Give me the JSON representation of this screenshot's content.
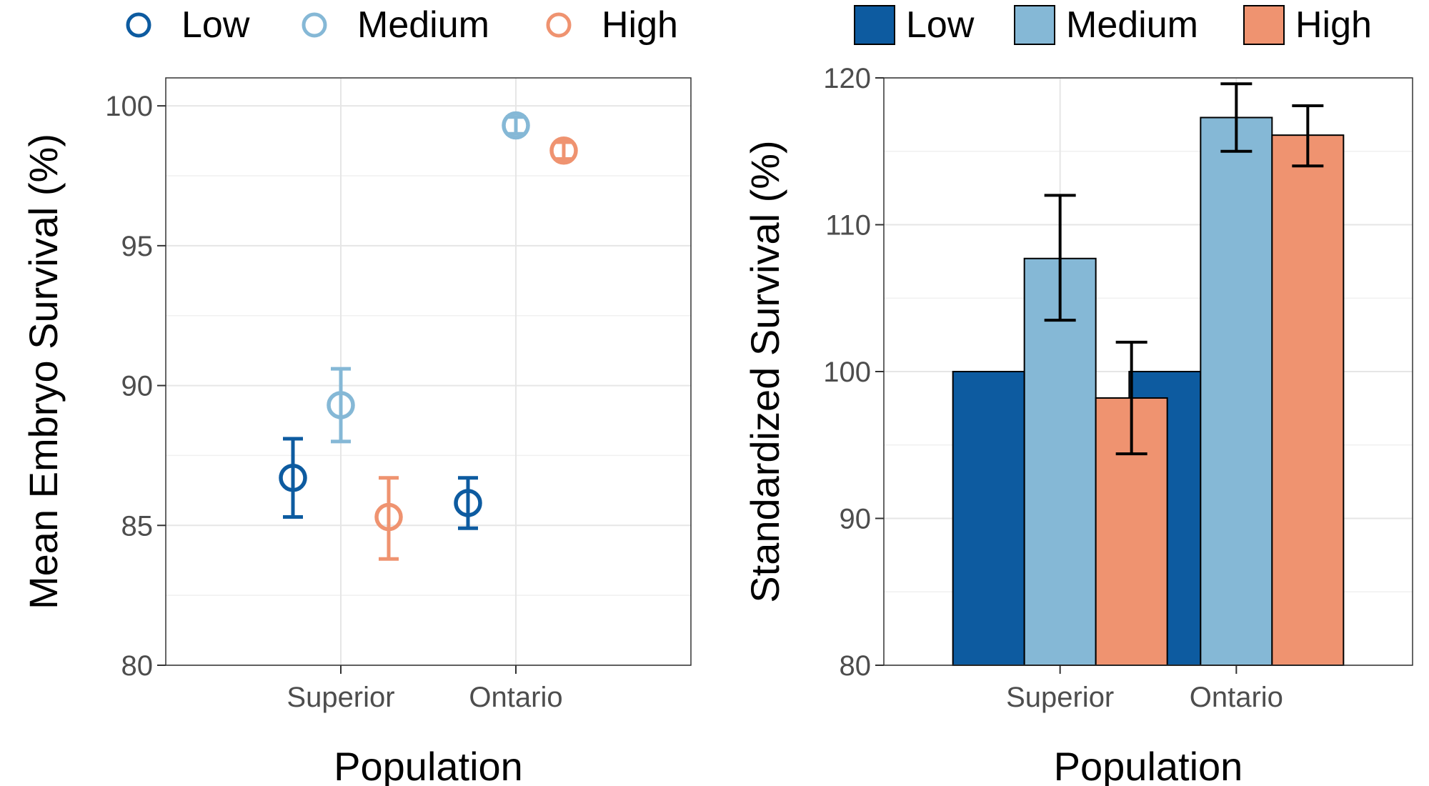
{
  "chart_data": [
    {
      "type": "scatter",
      "title": "",
      "xlabel": "Population",
      "ylabel": "Mean Embryo Survival (%)",
      "categories": [
        "Superior",
        "Ontario"
      ],
      "ylim": [
        80,
        101
      ],
      "yticks": [
        80,
        85,
        90,
        95,
        100
      ],
      "grid": true,
      "legend_position": "top",
      "series": [
        {
          "name": "Low",
          "color": "#0d5ba0",
          "values": [
            86.7,
            85.8
          ],
          "err_low": [
            85.3,
            84.9
          ],
          "err_high": [
            88.1,
            86.7
          ]
        },
        {
          "name": "Medium",
          "color": "#85b8d6",
          "values": [
            89.3,
            99.3
          ],
          "err_low": [
            88.0,
            99.0
          ],
          "err_high": [
            90.6,
            99.6
          ]
        },
        {
          "name": "High",
          "color": "#ef9370",
          "values": [
            85.3,
            98.4
          ],
          "err_low": [
            83.8,
            98.1
          ],
          "err_high": [
            86.7,
            98.7
          ]
        }
      ]
    },
    {
      "type": "bar",
      "title": "",
      "xlabel": "Population",
      "ylabel": "Standardized Survival (%)",
      "categories": [
        "Superior",
        "Ontario"
      ],
      "ylim": [
        80,
        120
      ],
      "yticks": [
        80,
        90,
        100,
        110,
        120
      ],
      "grid": true,
      "legend_position": "top",
      "series": [
        {
          "name": "Low",
          "color": "#0d5ba0",
          "values": [
            100,
            100
          ],
          "err_low": [
            null,
            null
          ],
          "err_high": [
            null,
            null
          ]
        },
        {
          "name": "Medium",
          "color": "#85b8d6",
          "values": [
            107.7,
            117.3
          ],
          "err_low": [
            103.5,
            115.0
          ],
          "err_high": [
            112.0,
            119.6
          ]
        },
        {
          "name": "High",
          "color": "#ef9370",
          "values": [
            98.2,
            116.1
          ],
          "err_low": [
            94.4,
            114.0
          ],
          "err_high": [
            102.0,
            118.1
          ]
        }
      ]
    }
  ]
}
